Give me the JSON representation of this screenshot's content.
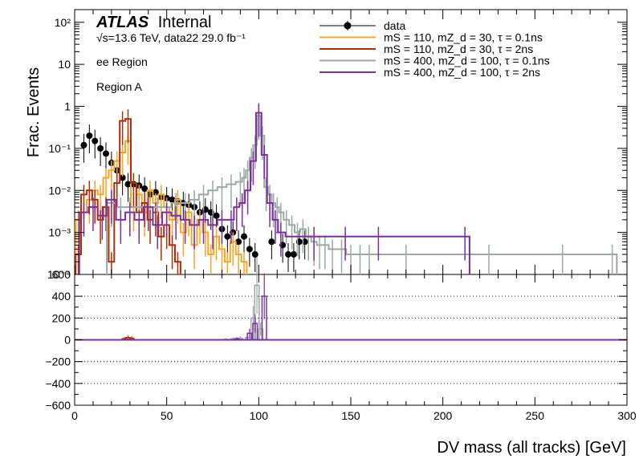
{
  "chart_data": [
    {
      "type": "histogram",
      "panel": "main",
      "ylabel": "Frac. Events",
      "xlim": [
        0,
        300
      ],
      "ylim": [
        0.0001,
        200
      ],
      "yscale": "log",
      "ytick_labels": [
        "10⁻⁴",
        "10⁻³",
        "10⁻²",
        "10⁻¹",
        "1",
        "10",
        "10²"
      ],
      "legend": {
        "placement": "top-right",
        "entries": [
          {
            "label": "data",
            "style": "marker"
          },
          {
            "label": "mS = 110, mZ_d = 30, τ = 0.1ns",
            "style": "line"
          },
          {
            "label": "mS = 110, mZ_d = 30, τ = 2ns",
            "style": "line"
          },
          {
            "label": "mS = 400, mZ_d = 100, τ = 0.1ns",
            "style": "line"
          },
          {
            "label": "mS = 400, mZ_d = 100, τ = 2ns",
            "style": "line"
          }
        ]
      },
      "annotations": {
        "experiment": "ATLAS",
        "status": "Internal",
        "energy": "√s=13.6 TeV, data22 29.0 fb⁻¹",
        "region1": "ee Region",
        "region2": "Region A"
      },
      "series": [
        {
          "name": "data",
          "kind": "points",
          "color": "#000000",
          "x": [
            5,
            8,
            11,
            14,
            17,
            20,
            23,
            26,
            29,
            32,
            35,
            38,
            41,
            44,
            47,
            50,
            53,
            56,
            59,
            62,
            65,
            68,
            71,
            74,
            77,
            80,
            83,
            86,
            89,
            92,
            95,
            98,
            107,
            113,
            116,
            119,
            122,
            125
          ],
          "y": [
            0.12,
            0.2,
            0.15,
            0.1,
            0.075,
            0.045,
            0.03,
            0.02,
            0.014,
            0.014,
            0.013,
            0.011,
            0.008,
            0.009,
            0.007,
            0.0065,
            0.006,
            0.0055,
            0.005,
            0.0045,
            0.004,
            0.003,
            0.0035,
            0.003,
            0.0025,
            0.0012,
            0.0008,
            0.001,
            0.0006,
            0.0008,
            0.0004,
            0.0003,
            0.0006,
            0.0005,
            0.0003,
            0.0003,
            0.0006,
            0.0006
          ]
        },
        {
          "name": "mS = 110, mZ_d = 30, τ = 0.1ns",
          "kind": "step",
          "color": "#f5a623",
          "x": [
            2,
            5,
            8,
            11,
            14,
            17,
            20,
            23,
            26,
            29,
            32,
            35,
            38,
            41,
            44,
            47,
            50,
            53,
            56,
            59,
            62,
            65,
            68,
            71,
            74,
            77,
            80,
            83,
            86,
            89,
            92
          ],
          "y": [
            0.002,
            0.003,
            0.006,
            0.01,
            0.008,
            0.02,
            0.03,
            0.05,
            0.08,
            0.15,
            0.004,
            0.008,
            0.003,
            0.01,
            0.005,
            0.008,
            0.004,
            0.002,
            0.006,
            0.001,
            0.003,
            0.0005,
            0.002,
            0.001,
            0.0003,
            0.0008,
            0.0004,
            0.0002,
            0.0006,
            0.0003,
            0.0002
          ]
        },
        {
          "name": "mS = 110, mZ_d = 30, τ = 2ns",
          "kind": "step",
          "color": "#b22c05",
          "x": [
            2,
            5,
            8,
            11,
            14,
            17,
            20,
            23,
            26,
            29,
            32,
            35,
            38,
            41,
            44,
            47,
            50,
            53,
            56
          ],
          "y": [
            0.0003,
            0.008,
            0.01,
            0.006,
            0.002,
            0.004,
            0.0002,
            0.015,
            0.45,
            0.5,
            0.015,
            0.003,
            0.005,
            0.002,
            0.003,
            0.0008,
            0.0015,
            0.0005,
            0.0002
          ]
        },
        {
          "name": "mS = 400, mZ_d = 100, τ = 0.1ns",
          "kind": "step",
          "color": "#9aa9a5",
          "x": [
            20,
            25,
            30,
            35,
            40,
            45,
            50,
            55,
            60,
            65,
            70,
            75,
            80,
            85,
            90,
            92,
            94,
            96,
            98,
            100,
            102,
            104,
            106,
            108,
            110,
            112,
            115,
            118,
            121,
            124,
            127,
            130,
            133,
            136,
            140,
            145,
            150,
            155,
            160,
            180,
            225,
            265,
            292
          ],
          "y": [
            0.005,
            0.004,
            0.004,
            0.004,
            0.004,
            0.004,
            0.004,
            0.005,
            0.005,
            0.006,
            0.008,
            0.01,
            0.012,
            0.014,
            0.016,
            0.02,
            0.03,
            0.06,
            0.12,
            0.6,
            0.2,
            0.012,
            0.008,
            0.005,
            0.004,
            0.003,
            0.002,
            0.0015,
            0.001,
            0.0012,
            0.0008,
            0.0006,
            0.0005,
            0.0005,
            0.0004,
            0.0004,
            0.0003,
            0.0003,
            0.0003,
            0.0003,
            0.0003,
            0.0003,
            0.0003
          ]
        },
        {
          "name": "mS = 400, mZ_d = 100, τ = 2ns",
          "kind": "step",
          "color": "#7b2fa5",
          "x": [
            5,
            10,
            15,
            20,
            25,
            30,
            35,
            40,
            45,
            50,
            55,
            60,
            65,
            70,
            75,
            80,
            85,
            88,
            91,
            94,
            97,
            100,
            103,
            106,
            109,
            112,
            130,
            147,
            165,
            212
          ],
          "y": [
            0.003,
            0.004,
            0.0025,
            0.006,
            0.002,
            0.003,
            0.002,
            0.004,
            0.0015,
            0.003,
            0.0025,
            0.002,
            0.0015,
            0.002,
            0.0015,
            0.002,
            0.002,
            0.004,
            0.005,
            0.01,
            0.05,
            0.7,
            0.07,
            0.005,
            0.002,
            0.001,
            0.0008,
            0.0008,
            0.0008,
            0.0008
          ]
        }
      ]
    },
    {
      "type": "histogram",
      "panel": "ratio",
      "xlabel": "DV mass (all tracks) [GeV]",
      "xlim": [
        0,
        300
      ],
      "ylim": [
        -600,
        600
      ],
      "xtick_labels": [
        "0",
        "50",
        "100",
        "150",
        "200",
        "250",
        "300"
      ],
      "ytick_labels": [
        "−600",
        "−400",
        "−200",
        "0",
        "200",
        "400",
        "600"
      ],
      "grid": "horizontal-dotted",
      "series": [
        {
          "name": "mS = 110, mZ_d = 30, τ = 2ns",
          "color": "#b22c05",
          "x": [
            27,
            29,
            31
          ],
          "y": [
            10,
            20,
            15
          ]
        },
        {
          "name": "mS = 400, mZ_d = 100, τ = 0.1ns",
          "color": "#9aa9a5",
          "x": [
            82,
            86,
            90,
            94,
            97,
            99,
            101
          ],
          "y": [
            5,
            10,
            15,
            20,
            200,
            500,
            100
          ]
        },
        {
          "name": "mS = 400, mZ_d = 100, τ = 2ns",
          "color": "#7b2fa5",
          "x": [
            88,
            95,
            98,
            103
          ],
          "y": [
            10,
            60,
            150,
            400
          ]
        }
      ]
    }
  ]
}
